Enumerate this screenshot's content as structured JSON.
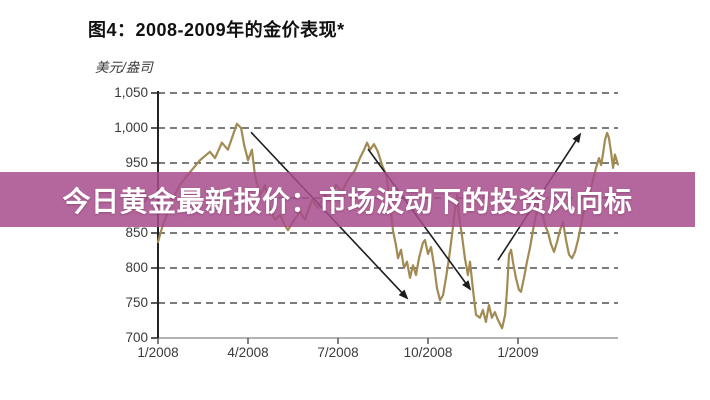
{
  "figure": {
    "title": "图4：2008-2009年的金价表现*",
    "unit_label": "美元/盎司"
  },
  "banner": {
    "text": "今日黄金最新报价：市场波动下的投资风向标",
    "bg_color": "rgba(167,76,139,0.85)",
    "text_color": "#ffffff"
  },
  "chart_data": {
    "type": "line",
    "title": "图4：2008-2009年的金价表现*",
    "ylabel": "美元/盎司",
    "xlabel": "",
    "ylim": [
      700,
      1050
    ],
    "y_tick_step": 50,
    "y_tick_labels": [
      "1,050",
      "1,000",
      "950",
      "900",
      "850",
      "800",
      "750",
      "700"
    ],
    "y_tick_values": [
      1050,
      1000,
      950,
      900,
      850,
      800,
      750,
      700
    ],
    "x_tick_labels": [
      "1/2008",
      "4/2008",
      "7/2008",
      "10/2008",
      "1/2009"
    ],
    "x_tick_months": [
      0,
      3,
      6,
      9,
      12
    ],
    "xlim_months": [
      0,
      15.33
    ],
    "grid": "horizontal-dashed",
    "legend": "none",
    "line_color": "#a28a53",
    "axis_color": "#222222",
    "xaxis_line_color": "#9a9a9a",
    "grid_color": "#2f2f2f",
    "arrow_color": "#1c1c1c",
    "series": [
      {
        "name": "Gold price, US$/oz",
        "points": [
          [
            0,
            837
          ],
          [
            0.13,
            857
          ],
          [
            0.4,
            890
          ],
          [
            0.73,
            919
          ],
          [
            1.07,
            937
          ],
          [
            1.4,
            954
          ],
          [
            1.73,
            966
          ],
          [
            1.9,
            957
          ],
          [
            2.13,
            979
          ],
          [
            2.33,
            969
          ],
          [
            2.5,
            990
          ],
          [
            2.63,
            1006
          ],
          [
            2.77,
            1000
          ],
          [
            2.87,
            976
          ],
          [
            3,
            954
          ],
          [
            3.13,
            969
          ],
          [
            3.23,
            933
          ],
          [
            3.4,
            904
          ],
          [
            3.57,
            918
          ],
          [
            3.73,
            883
          ],
          [
            3.9,
            869
          ],
          [
            4.07,
            876
          ],
          [
            4.23,
            861
          ],
          [
            4.33,
            854
          ],
          [
            4.5,
            866
          ],
          [
            4.73,
            880
          ],
          [
            4.9,
            869
          ],
          [
            5.13,
            897
          ],
          [
            5.33,
            886
          ],
          [
            5.57,
            904
          ],
          [
            5.73,
            897
          ],
          [
            5.93,
            919
          ],
          [
            6.13,
            909
          ],
          [
            6.33,
            926
          ],
          [
            6.57,
            940
          ],
          [
            6.73,
            957
          ],
          [
            6.87,
            969
          ],
          [
            6.97,
            979
          ],
          [
            7.07,
            969
          ],
          [
            7.2,
            977
          ],
          [
            7.33,
            966
          ],
          [
            7.47,
            947
          ],
          [
            7.6,
            933
          ],
          [
            7.73,
            897
          ],
          [
            7.83,
            854
          ],
          [
            7.93,
            833
          ],
          [
            8,
            814
          ],
          [
            8.1,
            826
          ],
          [
            8.2,
            800
          ],
          [
            8.3,
            809
          ],
          [
            8.4,
            786
          ],
          [
            8.5,
            804
          ],
          [
            8.6,
            790
          ],
          [
            8.7,
            814
          ],
          [
            8.83,
            836
          ],
          [
            8.9,
            840
          ],
          [
            9,
            820
          ],
          [
            9.1,
            830
          ],
          [
            9.2,
            804
          ],
          [
            9.3,
            771
          ],
          [
            9.4,
            754
          ],
          [
            9.5,
            761
          ],
          [
            9.6,
            786
          ],
          [
            9.7,
            814
          ],
          [
            9.8,
            847
          ],
          [
            9.9,
            883
          ],
          [
            9.97,
            904
          ],
          [
            10.03,
            876
          ],
          [
            10.13,
            847
          ],
          [
            10.23,
            814
          ],
          [
            10.33,
            790
          ],
          [
            10.4,
            809
          ],
          [
            10.5,
            769
          ],
          [
            10.6,
            733
          ],
          [
            10.73,
            729
          ],
          [
            10.83,
            740
          ],
          [
            10.93,
            723
          ],
          [
            11.03,
            747
          ],
          [
            11.13,
            729
          ],
          [
            11.23,
            737
          ],
          [
            11.33,
            726
          ],
          [
            11.47,
            714
          ],
          [
            11.57,
            733
          ],
          [
            11.63,
            766
          ],
          [
            11.7,
            819
          ],
          [
            11.77,
            826
          ],
          [
            11.83,
            809
          ],
          [
            11.93,
            786
          ],
          [
            12.03,
            769
          ],
          [
            12.1,
            766
          ],
          [
            12.2,
            786
          ],
          [
            12.3,
            809
          ],
          [
            12.4,
            829
          ],
          [
            12.5,
            854
          ],
          [
            12.6,
            876
          ],
          [
            12.7,
            890
          ],
          [
            12.8,
            880
          ],
          [
            12.9,
            861
          ],
          [
            13,
            851
          ],
          [
            13.1,
            834
          ],
          [
            13.2,
            823
          ],
          [
            13.3,
            837
          ],
          [
            13.4,
            854
          ],
          [
            13.5,
            866
          ],
          [
            13.6,
            840
          ],
          [
            13.7,
            819
          ],
          [
            13.8,
            814
          ],
          [
            13.9,
            823
          ],
          [
            14,
            840
          ],
          [
            14.1,
            861
          ],
          [
            14.2,
            883
          ],
          [
            14.3,
            897
          ],
          [
            14.4,
            909
          ],
          [
            14.5,
            926
          ],
          [
            14.6,
            943
          ],
          [
            14.7,
            957
          ],
          [
            14.77,
            947
          ],
          [
            14.83,
            962
          ],
          [
            14.9,
            983
          ],
          [
            14.97,
            993
          ],
          [
            15.03,
            986
          ],
          [
            15.1,
            966
          ],
          [
            15.17,
            943
          ],
          [
            15.23,
            962
          ],
          [
            15.33,
            948
          ]
        ]
      }
    ],
    "annotations": {
      "arrows": [
        {
          "from": [
            3.1,
            994
          ],
          "to": [
            8.3,
            757
          ],
          "direction": "down"
        },
        {
          "from": [
            7.0,
            970
          ],
          "to": [
            10.4,
            770
          ],
          "direction": "down"
        },
        {
          "from": [
            11.33,
            811
          ],
          "to": [
            14.07,
            991
          ],
          "direction": "up"
        }
      ]
    }
  }
}
